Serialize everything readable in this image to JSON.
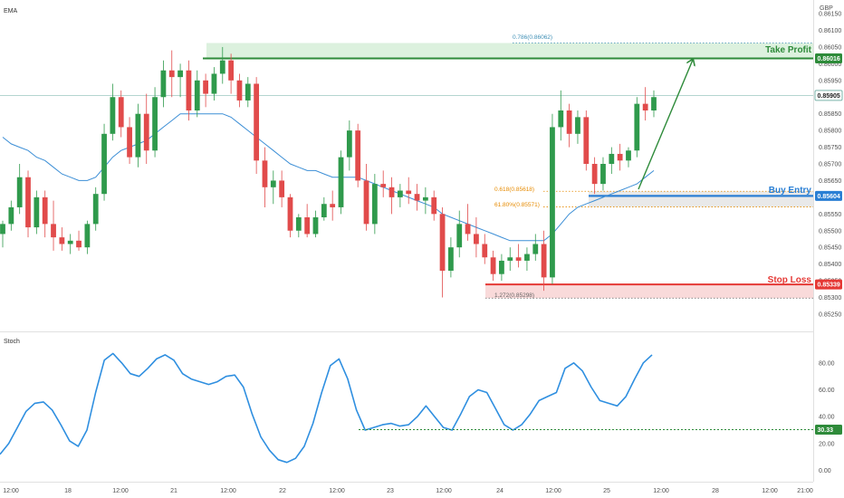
{
  "chart_data": {
    "type": "candlestick",
    "main_pane": {
      "label": "EMA",
      "currency": "GBP",
      "y_ticks": [
        "0.85250",
        "0.85300",
        "0.85350",
        "0.85400",
        "0.85450",
        "0.85500",
        "0.85550",
        "0.85600",
        "0.85650",
        "0.85700",
        "0.85750",
        "0.85800",
        "0.85850",
        "0.85900",
        "0.85950",
        "0.86000",
        "0.86050",
        "0.86100",
        "0.86150"
      ],
      "ylim": [
        0.8522,
        0.8618
      ],
      "candles": [
        [
          0.8549,
          0.8553,
          0.8545,
          0.8552
        ],
        [
          0.8552,
          0.8559,
          0.855,
          0.8557
        ],
        [
          0.8557,
          0.857,
          0.8555,
          0.8566
        ],
        [
          0.8566,
          0.8568,
          0.8548,
          0.8551
        ],
        [
          0.8551,
          0.8562,
          0.8549,
          0.856
        ],
        [
          0.856,
          0.8562,
          0.8548,
          0.8552
        ],
        [
          0.8552,
          0.8559,
          0.8544,
          0.8548
        ],
        [
          0.8548,
          0.8551,
          0.8544,
          0.8546
        ],
        [
          0.8546,
          0.8549,
          0.8543,
          0.8547
        ],
        [
          0.8547,
          0.855,
          0.8544,
          0.8545
        ],
        [
          0.8545,
          0.8553,
          0.8543,
          0.8552
        ],
        [
          0.8552,
          0.8563,
          0.855,
          0.8561
        ],
        [
          0.8561,
          0.8582,
          0.8559,
          0.8579
        ],
        [
          0.8579,
          0.8594,
          0.8577,
          0.859
        ],
        [
          0.859,
          0.8592,
          0.8578,
          0.8581
        ],
        [
          0.8581,
          0.8584,
          0.857,
          0.8572
        ],
        [
          0.8572,
          0.8588,
          0.8569,
          0.8585
        ],
        [
          0.8585,
          0.8591,
          0.857,
          0.8574
        ],
        [
          0.8574,
          0.8593,
          0.8572,
          0.859
        ],
        [
          0.859,
          0.8601,
          0.8587,
          0.8598
        ],
        [
          0.8598,
          0.8604,
          0.859,
          0.8596
        ],
        [
          0.8596,
          0.86,
          0.859,
          0.8598
        ],
        [
          0.8598,
          0.8601,
          0.8583,
          0.8586
        ],
        [
          0.8586,
          0.8598,
          0.8584,
          0.8595
        ],
        [
          0.8595,
          0.8597,
          0.8587,
          0.8591
        ],
        [
          0.8591,
          0.8599,
          0.8589,
          0.8597
        ],
        [
          0.8597,
          0.8605,
          0.8594,
          0.8601
        ],
        [
          0.8601,
          0.8603,
          0.8591,
          0.8595
        ],
        [
          0.8595,
          0.8597,
          0.8587,
          0.8589
        ],
        [
          0.8589,
          0.8596,
          0.8587,
          0.8594
        ],
        [
          0.8594,
          0.8596,
          0.8567,
          0.8571
        ],
        [
          0.8571,
          0.8575,
          0.8557,
          0.8563
        ],
        [
          0.8563,
          0.8568,
          0.8558,
          0.8565
        ],
        [
          0.8565,
          0.8568,
          0.8557,
          0.856
        ],
        [
          0.856,
          0.8561,
          0.8548,
          0.855
        ],
        [
          0.855,
          0.8555,
          0.8548,
          0.8554
        ],
        [
          0.8554,
          0.8558,
          0.8548,
          0.8549
        ],
        [
          0.8549,
          0.8556,
          0.8548,
          0.8554
        ],
        [
          0.8554,
          0.856,
          0.8553,
          0.8558
        ],
        [
          0.8558,
          0.8562,
          0.8553,
          0.8557
        ],
        [
          0.8557,
          0.8574,
          0.8555,
          0.8572
        ],
        [
          0.8572,
          0.8583,
          0.8568,
          0.858
        ],
        [
          0.858,
          0.8582,
          0.8563,
          0.8565
        ],
        [
          0.8565,
          0.857,
          0.855,
          0.8552
        ],
        [
          0.8552,
          0.8567,
          0.8549,
          0.8564
        ],
        [
          0.8564,
          0.8568,
          0.856,
          0.8563
        ],
        [
          0.8563,
          0.8566,
          0.8555,
          0.856
        ],
        [
          0.856,
          0.8564,
          0.8557,
          0.8562
        ],
        [
          0.8562,
          0.8566,
          0.8558,
          0.8561
        ],
        [
          0.8561,
          0.8564,
          0.8556,
          0.8559
        ],
        [
          0.8559,
          0.8563,
          0.8555,
          0.856
        ],
        [
          0.856,
          0.8562,
          0.8553,
          0.8555
        ],
        [
          0.8555,
          0.8557,
          0.853,
          0.8538
        ],
        [
          0.8538,
          0.8548,
          0.8536,
          0.8545
        ],
        [
          0.8545,
          0.8556,
          0.8542,
          0.8552
        ],
        [
          0.8552,
          0.8558,
          0.8547,
          0.8549
        ],
        [
          0.8549,
          0.8554,
          0.8542,
          0.8546
        ],
        [
          0.8546,
          0.8549,
          0.854,
          0.8542
        ],
        [
          0.8542,
          0.8544,
          0.8535,
          0.8537
        ],
        [
          0.8537,
          0.8543,
          0.8535,
          0.8541
        ],
        [
          0.8541,
          0.8545,
          0.8538,
          0.8542
        ],
        [
          0.8542,
          0.8546,
          0.8539,
          0.8541
        ],
        [
          0.8541,
          0.8545,
          0.8538,
          0.8543
        ],
        [
          0.8543,
          0.8549,
          0.8541,
          0.8546
        ],
        [
          0.8546,
          0.855,
          0.8532,
          0.8536
        ],
        [
          0.8536,
          0.8585,
          0.8534,
          0.8581
        ],
        [
          0.8581,
          0.8592,
          0.8577,
          0.8586
        ],
        [
          0.8586,
          0.8588,
          0.8575,
          0.8579
        ],
        [
          0.8579,
          0.8586,
          0.8576,
          0.8584
        ],
        [
          0.8584,
          0.8586,
          0.8568,
          0.857
        ],
        [
          0.857,
          0.8572,
          0.8561,
          0.8564
        ],
        [
          0.8564,
          0.8572,
          0.8562,
          0.857
        ],
        [
          0.857,
          0.8575,
          0.8567,
          0.8573
        ],
        [
          0.8573,
          0.8576,
          0.8568,
          0.8571
        ],
        [
          0.8571,
          0.8575,
          0.8569,
          0.8574
        ],
        [
          0.8574,
          0.859,
          0.8572,
          0.8588
        ],
        [
          0.8588,
          0.8593,
          0.8583,
          0.8586
        ],
        [
          0.8586,
          0.8592,
          0.8584,
          0.859
        ]
      ],
      "ema": [
        0.8578,
        0.8576,
        0.8575,
        0.8574,
        0.8572,
        0.8571,
        0.8569,
        0.8567,
        0.8566,
        0.8565,
        0.8565,
        0.8566,
        0.8569,
        0.8572,
        0.8574,
        0.8575,
        0.8576,
        0.8577,
        0.8579,
        0.8581,
        0.8583,
        0.8585,
        0.8585,
        0.8585,
        0.8585,
        0.8585,
        0.8585,
        0.8584,
        0.8582,
        0.858,
        0.8578,
        0.8576,
        0.8574,
        0.8572,
        0.857,
        0.8569,
        0.8568,
        0.8568,
        0.8567,
        0.8566,
        0.8566,
        0.8566,
        0.8566,
        0.8565,
        0.8564,
        0.8563,
        0.8562,
        0.8561,
        0.856,
        0.8559,
        0.8558,
        0.8557,
        0.8555,
        0.8554,
        0.8553,
        0.8552,
        0.8551,
        0.855,
        0.8549,
        0.8548,
        0.8547,
        0.8547,
        0.8547,
        0.8547,
        0.8547,
        0.8549,
        0.8552,
        0.8555,
        0.8557,
        0.8558,
        0.8559,
        0.856,
        0.8561,
        0.8562,
        0.8563,
        0.8564,
        0.8566,
        0.8568
      ],
      "levels": {
        "take_profit": {
          "label": "Take Profit",
          "price": "0.86016",
          "value": 0.86016,
          "color": "#2e8b3a"
        },
        "current": {
          "price": "0.85905",
          "value": 0.85905
        },
        "buy_entry": {
          "label": "Buy Entry",
          "price": "0.85604",
          "value": 0.85604,
          "color": "#2a7fd4"
        },
        "stop_loss": {
          "label": "Stop Loss",
          "price": "0.85339",
          "value": 0.85339,
          "color": "#e53935"
        }
      },
      "fib_labels": {
        "fib_786": {
          "text": "0.786(0.86062)",
          "value": 0.86062
        },
        "fib_618": {
          "text": "0.618(0.85618)",
          "value": 0.85618
        },
        "fib_618b": {
          "text": "61.80%(0.85571)",
          "value": 0.85571
        },
        "fib_1272": {
          "text": "1.272(0.85298)",
          "value": 0.85298
        }
      }
    },
    "stoch_pane": {
      "label": "Stoch",
      "y_ticks": [
        "0.00",
        "20.00",
        "40.00",
        "60.00",
        "80.00"
      ],
      "ylim": [
        -5,
        92
      ],
      "values": [
        12,
        20,
        32,
        44,
        50,
        51,
        45,
        34,
        22,
        18,
        30,
        58,
        82,
        87,
        80,
        72,
        70,
        76,
        83,
        86,
        82,
        72,
        68,
        66,
        64,
        66,
        70,
        71,
        62,
        42,
        25,
        15,
        8,
        6,
        9,
        18,
        35,
        58,
        78,
        83,
        68,
        45,
        30,
        32,
        34,
        35,
        33,
        34,
        40,
        48,
        40,
        32,
        30,
        42,
        55,
        60,
        58,
        46,
        34,
        30,
        34,
        42,
        52,
        55,
        58,
        76,
        80,
        74,
        62,
        52,
        50,
        48,
        55,
        68,
        80,
        86
      ],
      "reference_level": {
        "price": "30.33",
        "value": 30.33
      }
    },
    "x_ticks": [
      "12:00",
      "18",
      "12:00",
      "21",
      "12:00",
      "22",
      "12:00",
      "23",
      "12:00",
      "24",
      "12:00",
      "25",
      "12:00",
      "28",
      "12:00",
      "21:00"
    ]
  }
}
